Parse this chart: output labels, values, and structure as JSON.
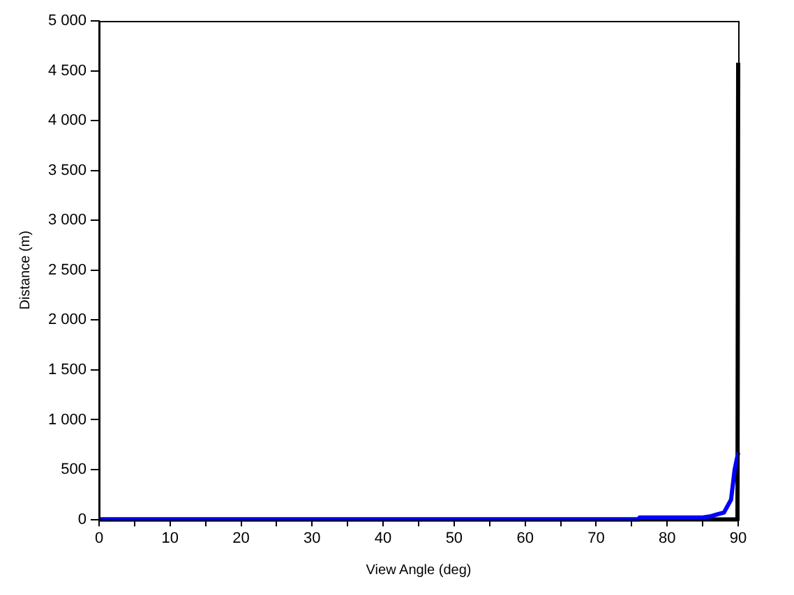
{
  "chart_data": {
    "type": "line",
    "xlabel": "View Angle (deg)",
    "ylabel": "Distance (m)",
    "xlim": [
      0,
      90
    ],
    "xticks": [
      0,
      {
        "value": 5,
        "label": null
      },
      10,
      {
        "value": 15,
        "label": null
      },
      20,
      {
        "value": 25,
        "label": null
      },
      30,
      {
        "value": 35,
        "label": null
      },
      40,
      {
        "value": 45,
        "label": null
      },
      50,
      {
        "value": 55,
        "label": null
      },
      60,
      {
        "value": 65,
        "label": null
      },
      70,
      {
        "value": 75,
        "label": null
      },
      80,
      {
        "value": 85,
        "label": null
      },
      90
    ],
    "ylim": [
      0,
      5000
    ],
    "yticks": [
      0,
      500,
      {
        "value": 1000,
        "label": "1 000"
      },
      {
        "value": 1500,
        "label": "1 500"
      },
      {
        "value": 2000,
        "label": "2 000"
      },
      {
        "value": 2500,
        "label": "2 500"
      },
      {
        "value": 3000,
        "label": "3 000"
      },
      {
        "value": 3500,
        "label": "3 500"
      },
      {
        "value": 4000,
        "label": "4 000"
      },
      {
        "value": 4500,
        "label": "4 500"
      },
      {
        "value": 5000,
        "label": "5 000"
      }
    ],
    "grid": false,
    "legend": false,
    "marker": "none",
    "line_style": "solid",
    "series": [
      {
        "color": "#000000",
        "x": [
          0,
          89.9,
          90
        ],
        "values": [
          0,
          0,
          4580
        ]
      },
      {
        "color": "#0000ff",
        "x": [
          0,
          76,
          76.1,
          85,
          86,
          87,
          88,
          89,
          89.5,
          90
        ],
        "values": [
          0,
          0,
          20,
          20,
          30,
          50,
          70,
          200,
          500,
          670
        ]
      }
    ]
  }
}
